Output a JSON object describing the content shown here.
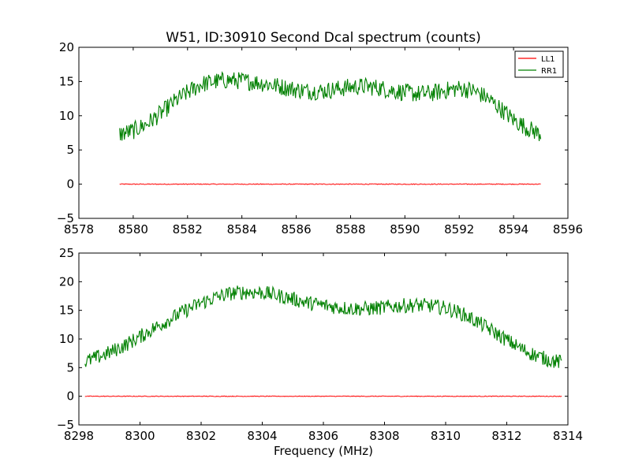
{
  "chart_data": [
    {
      "type": "line",
      "title": "W51, ID:30910 Second Dcal spectrum (counts)",
      "xlabel": "",
      "ylabel": "",
      "xlim": [
        8578,
        8596
      ],
      "ylim": [
        -5,
        20
      ],
      "xticks": [
        8578,
        8580,
        8582,
        8584,
        8586,
        8588,
        8590,
        8592,
        8594,
        8596
      ],
      "yticks": [
        -5,
        0,
        5,
        10,
        15,
        20
      ],
      "grid": false,
      "legend": "top-right",
      "series": [
        {
          "name": "LL1",
          "color": "#ff0000",
          "x": [
            8579.5,
            8595.0
          ],
          "y": [
            0.0,
            0.0
          ]
        },
        {
          "name": "RR1",
          "color": "#008000",
          "x": [
            8579.5,
            8580.0,
            8580.5,
            8581.0,
            8581.5,
            8582.0,
            8582.5,
            8583.0,
            8583.5,
            8584.0,
            8584.5,
            8585.0,
            8585.5,
            8586.0,
            8586.5,
            8587.0,
            8587.5,
            8588.0,
            8588.5,
            8589.0,
            8589.5,
            8590.0,
            8590.5,
            8591.0,
            8591.5,
            8592.0,
            8592.5,
            8593.0,
            8593.5,
            8594.0,
            8594.5,
            8595.0
          ],
          "y": [
            7.3,
            7.8,
            8.8,
            10.3,
            12.0,
            13.4,
            14.6,
            15.0,
            15.2,
            15.1,
            14.9,
            14.6,
            14.2,
            13.8,
            13.6,
            13.6,
            13.9,
            14.2,
            14.3,
            14.1,
            13.7,
            13.4,
            13.2,
            13.3,
            13.7,
            14.0,
            13.7,
            12.7,
            11.1,
            9.4,
            8.2,
            7.3
          ]
        }
      ]
    },
    {
      "type": "line",
      "title": "",
      "xlabel": "Frequency (MHz)",
      "ylabel": "",
      "xlim": [
        8298,
        8314
      ],
      "ylim": [
        -5,
        25
      ],
      "xticks": [
        8298,
        8300,
        8302,
        8304,
        8306,
        8308,
        8310,
        8312,
        8314
      ],
      "yticks": [
        -5,
        0,
        5,
        10,
        15,
        20,
        25
      ],
      "grid": false,
      "legend": "",
      "series": [
        {
          "name": "LL1",
          "color": "#ff0000",
          "x": [
            8298.2,
            8313.8
          ],
          "y": [
            0.0,
            0.0
          ]
        },
        {
          "name": "RR1",
          "color": "#008000",
          "x": [
            8298.2,
            8298.5,
            8299.0,
            8299.5,
            8300.0,
            8300.5,
            8301.0,
            8301.5,
            8302.0,
            8302.5,
            8303.0,
            8303.5,
            8304.0,
            8304.5,
            8305.0,
            8305.5,
            8306.0,
            8306.5,
            8307.0,
            8307.5,
            8308.0,
            8308.5,
            8309.0,
            8309.5,
            8310.0,
            8310.5,
            8311.0,
            8311.5,
            8312.0,
            8312.5,
            8313.0,
            8313.5,
            8313.8
          ],
          "y": [
            6.0,
            6.6,
            7.6,
            8.9,
            10.4,
            12.0,
            13.5,
            15.0,
            16.3,
            17.3,
            18.0,
            18.2,
            18.1,
            17.6,
            17.0,
            16.3,
            15.9,
            15.5,
            15.3,
            15.3,
            15.5,
            15.8,
            15.9,
            15.8,
            15.4,
            14.5,
            13.1,
            11.5,
            9.8,
            8.2,
            7.0,
            6.2,
            5.9
          ]
        }
      ]
    }
  ]
}
